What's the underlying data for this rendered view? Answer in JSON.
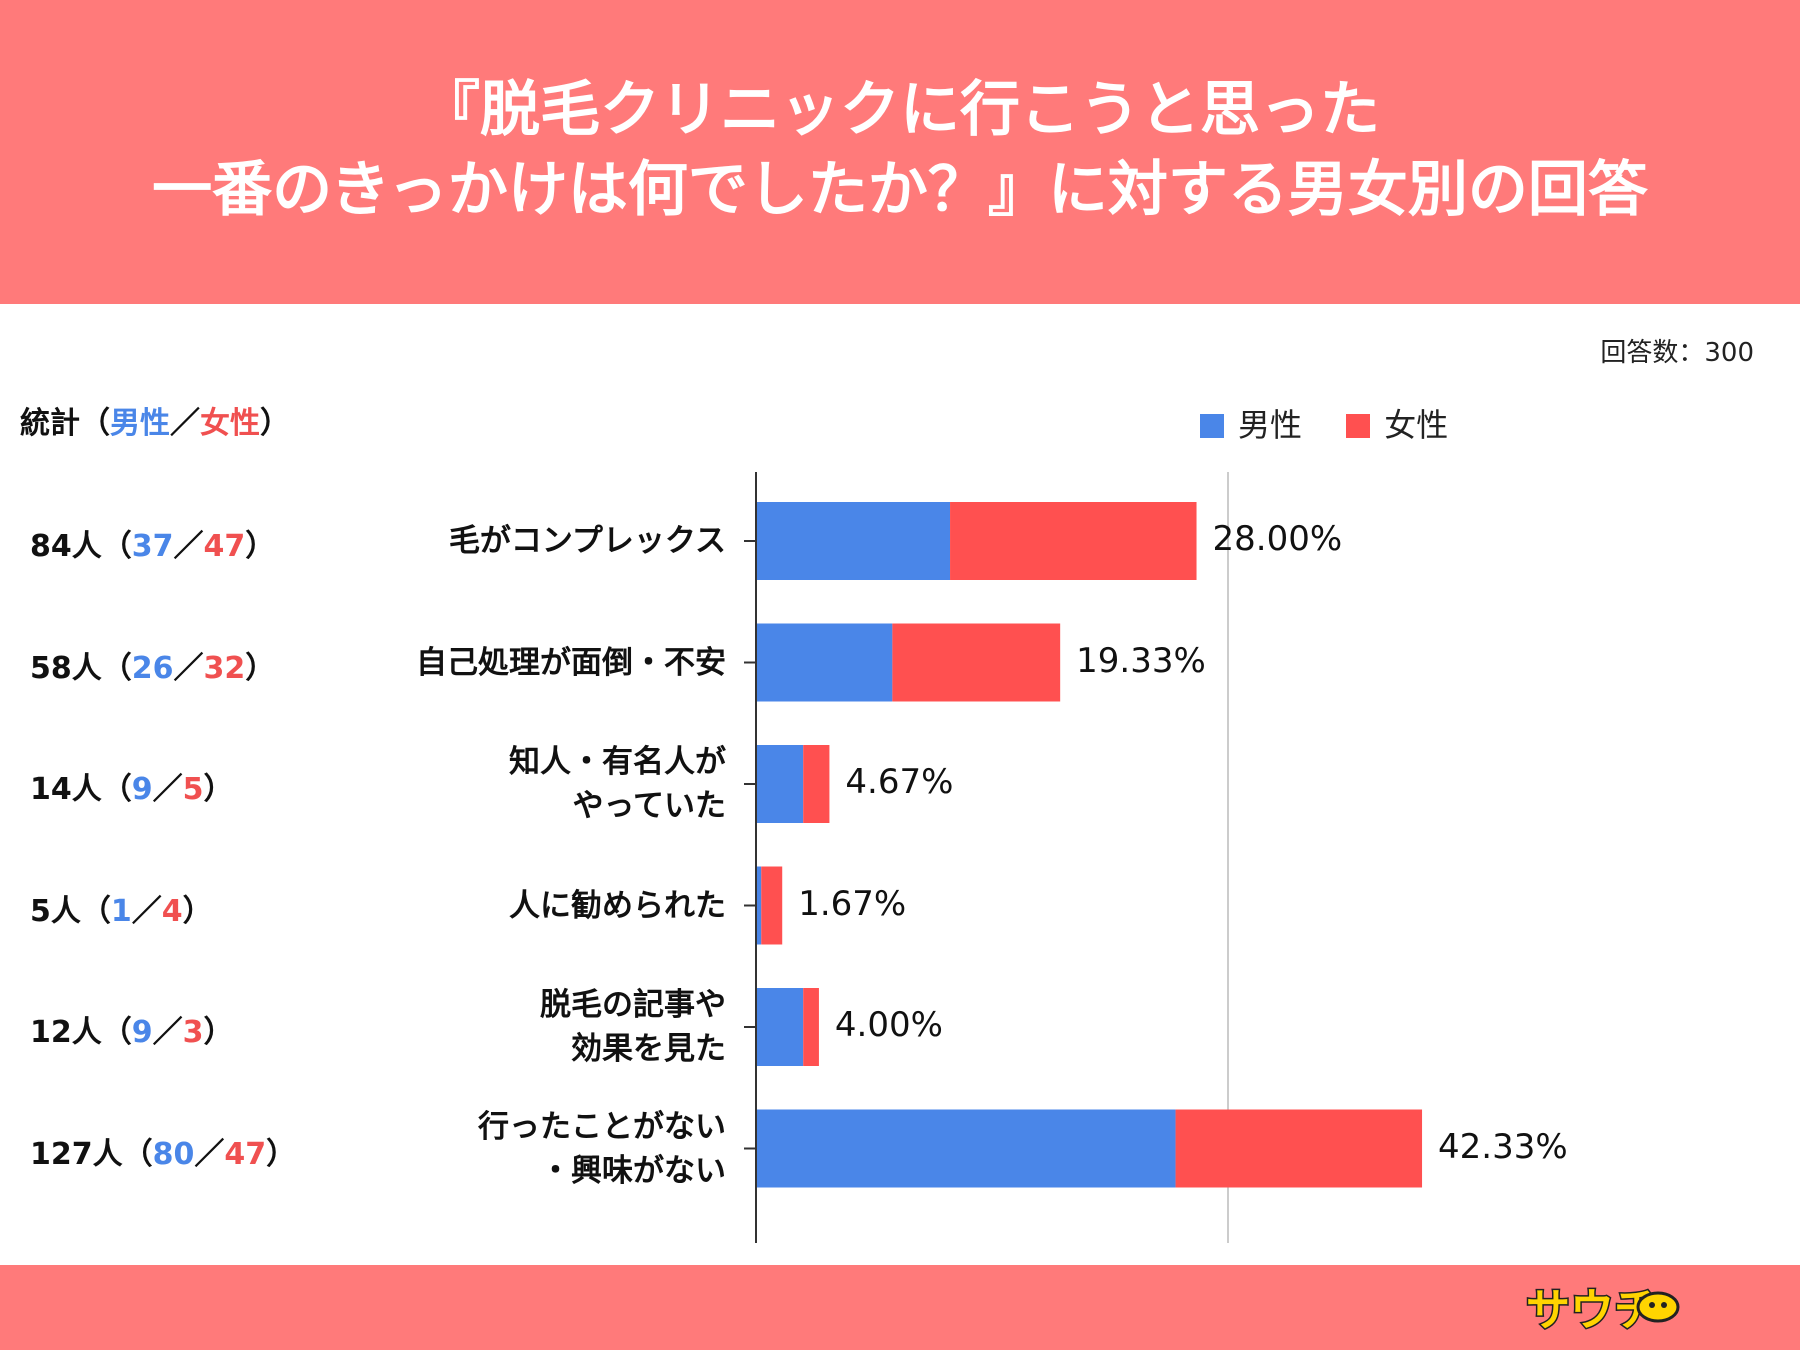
{
  "header": {
    "title_line1": "『脱毛クリニックに行こうと思った",
    "title_line2": "一番のきっかけは何でしたか？』に対する男女別の回答"
  },
  "respondents": "回答数：300",
  "stats_header": {
    "prefix": "統計（",
    "male": "男性",
    "sep": "／",
    "female": "女性",
    "suffix": "）"
  },
  "colors": {
    "male": "#4a86e8",
    "female": "#ff5050",
    "header": "#ff7a7a"
  },
  "footer": {
    "logo_icon": "sawtooth-logo",
    "logo_text": "サウチ"
  },
  "chart_data": {
    "type": "bar",
    "orientation": "horizontal",
    "stacked": true,
    "legend": [
      "男性",
      "女性"
    ],
    "legend_position": "top-right",
    "xlim": [
      0,
      45
    ],
    "gridline_x": 30,
    "categories": [
      {
        "label_lines": [
          "毛がコンプレックス"
        ],
        "total": 84,
        "male": 37,
        "female": 47,
        "pct": "28.00%",
        "stat_prefix": "84人（",
        "stat_male": "37",
        "stat_sep": "／",
        "stat_female": "47",
        "stat_suffix": "）"
      },
      {
        "label_lines": [
          "自己処理が面倒・不安"
        ],
        "total": 58,
        "male": 26,
        "female": 32,
        "pct": "19.33%",
        "stat_prefix": "58人（",
        "stat_male": "26",
        "stat_sep": "／",
        "stat_female": "32",
        "stat_suffix": "）"
      },
      {
        "label_lines": [
          "知人・有名人が",
          "やっていた"
        ],
        "total": 14,
        "male": 9,
        "female": 5,
        "pct": "4.67%",
        "stat_prefix": "14人（",
        "stat_male": "9",
        "stat_sep": "／",
        "stat_female": "5",
        "stat_suffix": "）"
      },
      {
        "label_lines": [
          "人に勧められた"
        ],
        "total": 5,
        "male": 1,
        "female": 4,
        "pct": "1.67%",
        "stat_prefix": "5人（",
        "stat_male": "1",
        "stat_sep": "／",
        "stat_female": "4",
        "stat_suffix": "）"
      },
      {
        "label_lines": [
          "脱毛の記事や",
          "効果を見た"
        ],
        "total": 12,
        "male": 9,
        "female": 3,
        "pct": "4.00%",
        "stat_prefix": "12人（",
        "stat_male": "9",
        "stat_sep": "／",
        "stat_female": "3",
        "stat_suffix": "）"
      },
      {
        "label_lines": [
          "行ったことがない",
          "・興味がない"
        ],
        "total": 127,
        "male": 80,
        "female": 47,
        "pct": "42.33%",
        "stat_prefix": "127人（",
        "stat_male": "80",
        "stat_sep": "／",
        "stat_female": "47",
        "stat_suffix": "）"
      }
    ]
  }
}
